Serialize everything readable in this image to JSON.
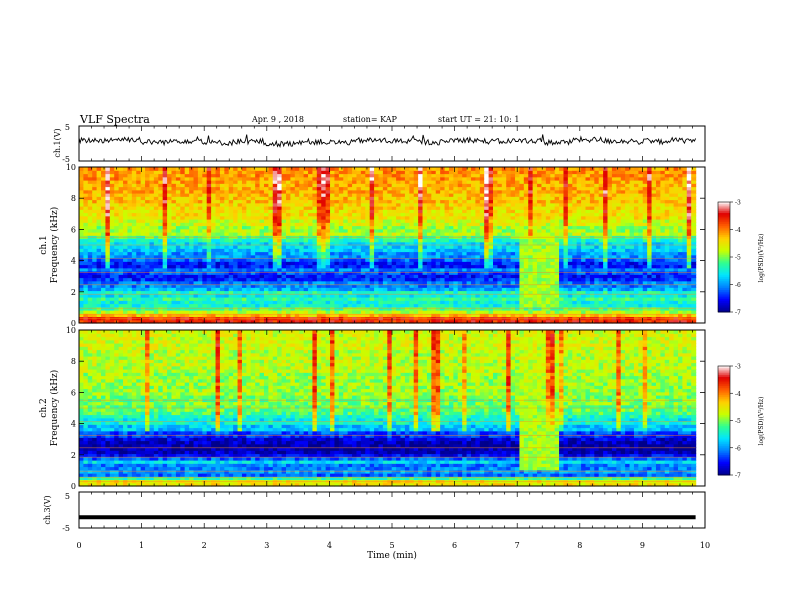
{
  "header": {
    "title": "VLF Spectra",
    "date": "Apr. 9 , 2018",
    "station": "station= KAP",
    "start": "start  UT =   21: 10: 1"
  },
  "colors": {
    "ramp": [
      "#00008b",
      "#0000ff",
      "#0080ff",
      "#00e5ff",
      "#30ff90",
      "#c8ff00",
      "#ffd000",
      "#ff6000",
      "#e00000",
      "#ffffff"
    ]
  },
  "chart_data": [
    {
      "type": "line",
      "panel": "ch1-waveform",
      "ylabel": "ch.1(V)",
      "ylim": [
        -5,
        5
      ],
      "yticks": [
        "5",
        "-5"
      ],
      "series": [
        {
          "values": [
            0.9,
            1.2,
            0.4,
            0.8,
            0.2,
            0.6,
            -0.1,
            0.5,
            0.3,
            0.9,
            0.7,
            0.4,
            1.0,
            0.6,
            0.8,
            0.3,
            1.1,
            0.7,
            0.5,
            0.9
          ]
        }
      ]
    },
    {
      "type": "heatmap",
      "panel": "ch1-spectrogram",
      "ylabel": "ch.1\nFrequency (kHz)",
      "ylabel_line1": "ch.1",
      "ylabel_line2": "Frequency (kHz)",
      "ylim": [
        0,
        10
      ],
      "yticks": [
        "0",
        "2",
        "4",
        "6",
        "8",
        "10"
      ],
      "colorbar": {
        "label": "log(PSD)(V²/Hz)",
        "range": [
          -7,
          -3
        ],
        "ticks": [
          "-3",
          "-4",
          "-5",
          "-6",
          "-7"
        ]
      },
      "band_values_by_frequency_khz": [
        [
          0.25,
          -3.6
        ],
        [
          0.5,
          -4.3
        ],
        [
          0.75,
          -4.8
        ],
        [
          1.0,
          -5.2
        ],
        [
          1.25,
          -5.5
        ],
        [
          1.5,
          -5.3
        ],
        [
          1.75,
          -5.6
        ],
        [
          2.0,
          -5.4
        ],
        [
          2.25,
          -5.9
        ],
        [
          2.5,
          -6.1
        ],
        [
          2.75,
          -6.4
        ],
        [
          3.0,
          -6.5
        ],
        [
          3.25,
          -6.3
        ],
        [
          3.5,
          -6.1
        ],
        [
          3.75,
          -6.5
        ],
        [
          4.0,
          -6.2
        ],
        [
          4.25,
          -6.0
        ],
        [
          4.5,
          -6.0
        ],
        [
          4.75,
          -5.8
        ],
        [
          5.0,
          -5.7
        ],
        [
          5.25,
          -5.4
        ],
        [
          5.5,
          -5.2
        ],
        [
          5.75,
          -4.8
        ],
        [
          6.0,
          -4.9
        ],
        [
          6.5,
          -4.7
        ],
        [
          7.0,
          -4.5
        ],
        [
          7.5,
          -4.4
        ],
        [
          8.0,
          -4.3
        ],
        [
          8.5,
          -4.2
        ],
        [
          9.0,
          -4.2
        ],
        [
          9.5,
          -4.1
        ],
        [
          10.0,
          -4.1
        ]
      ],
      "enhancement_interval_min": [
        7.0,
        7.6
      ]
    },
    {
      "type": "heatmap",
      "panel": "ch2-spectrogram",
      "ylabel": "ch.2\nFrequency (kHz)",
      "ylabel_line1": "ch.2",
      "ylabel_line2": "Frequency (kHz)",
      "ylim": [
        0,
        10
      ],
      "yticks": [
        "0",
        "2",
        "4",
        "6",
        "8",
        "10"
      ],
      "colorbar": {
        "label": "log(PSD)(V²/Hz)",
        "range": [
          -7,
          -3
        ],
        "ticks": [
          "-3",
          "-4",
          "-5",
          "-6",
          "-7"
        ]
      },
      "band_values_by_frequency_khz": [
        [
          0.25,
          -4.5
        ],
        [
          0.5,
          -5.3
        ],
        [
          0.75,
          -6.2
        ],
        [
          1.0,
          -6.0
        ],
        [
          1.25,
          -6.1
        ],
        [
          1.5,
          -5.7
        ],
        [
          1.75,
          -6.2
        ],
        [
          2.0,
          -6.6
        ],
        [
          2.25,
          -6.8
        ],
        [
          2.5,
          -6.9
        ],
        [
          2.75,
          -6.8
        ],
        [
          3.0,
          -6.7
        ],
        [
          3.25,
          -6.4
        ],
        [
          3.5,
          -6.3
        ],
        [
          3.75,
          -5.8
        ],
        [
          4.0,
          -5.5
        ],
        [
          4.25,
          -5.6
        ],
        [
          4.5,
          -5.4
        ],
        [
          4.75,
          -5.2
        ],
        [
          5.0,
          -5.1
        ],
        [
          5.25,
          -5.0
        ],
        [
          5.5,
          -5.1
        ],
        [
          5.75,
          -5.0
        ],
        [
          6.0,
          -4.9
        ],
        [
          6.5,
          -4.9
        ],
        [
          7.0,
          -4.9
        ],
        [
          7.5,
          -4.8
        ],
        [
          8.0,
          -4.8
        ],
        [
          8.5,
          -4.8
        ],
        [
          9.0,
          -4.7
        ],
        [
          9.5,
          -4.7
        ],
        [
          10.0,
          -4.7
        ]
      ],
      "enhancement_interval_min": [
        7.0,
        7.6
      ]
    },
    {
      "type": "line",
      "panel": "ch3-waveform",
      "ylabel": "ch.3(V)",
      "ylim": [
        -5,
        5
      ],
      "yticks": [
        "5",
        "0",
        "-5"
      ],
      "series": [
        {
          "values": [
            -2.0,
            -2.0
          ]
        }
      ]
    }
  ],
  "x_axis": {
    "label": "Time (min)",
    "range": [
      0,
      10
    ],
    "data_end": 9.85,
    "ticks": [
      "0",
      "1",
      "2",
      "3",
      "4",
      "5",
      "6",
      "7",
      "8",
      "9",
      "10"
    ]
  }
}
